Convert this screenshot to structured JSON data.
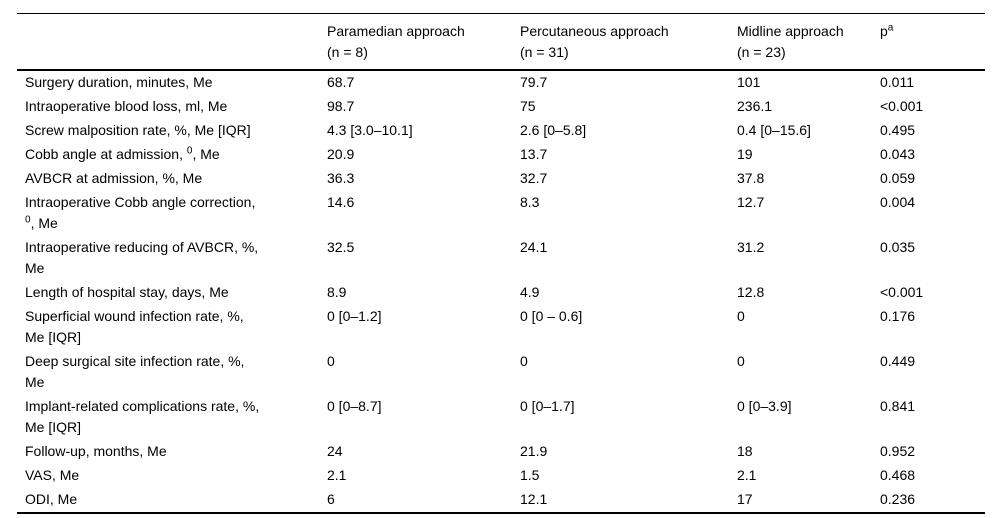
{
  "table": {
    "description": "Comparison of surgical approaches outcomes table",
    "headers": [
      "",
      "Paramedian approach\n(n = 8)",
      "Percutaneous approach\n(n = 31)",
      "Midline approach\n(n = 23)",
      "p^a^"
    ],
    "rows": [
      {
        "label": "Surgery duration, minutes, Me",
        "values": [
          "68.7",
          "79.7",
          "101",
          "0.011"
        ]
      },
      {
        "label": "Intraoperative blood loss, ml, Me",
        "values": [
          "98.7",
          "75",
          "236.1",
          "<0.001"
        ]
      },
      {
        "label": "Screw malposition rate, %, Me [IQR]",
        "values": [
          "4.3 [3.0–10.1]",
          "2.6 [0–5.8]",
          "0.4 [0–15.6]",
          "0.495"
        ]
      },
      {
        "label": "Cobb angle at admission, ^0^, Me",
        "values": [
          "20.9",
          "13.7",
          "19",
          "0.043"
        ]
      },
      {
        "label": "AVBCR at admission, %, Me",
        "values": [
          "36.3",
          "32.7",
          "37.8",
          "0.059"
        ]
      },
      {
        "label": "Intraoperative Cobb angle correction,\n^0^, Me",
        "values": [
          "14.6",
          "8.3",
          "12.7",
          "0.004"
        ]
      },
      {
        "label": "Intraoperative reducing of AVBCR, %,\nMe",
        "values": [
          "32.5",
          "24.1",
          "31.2",
          "0.035"
        ]
      },
      {
        "label": "Length of hospital stay, days, Me",
        "values": [
          "8.9",
          "4.9",
          "12.8",
          "<0.001"
        ]
      },
      {
        "label": "Superficial wound infection rate, %,\nMe [IQR]",
        "values": [
          "0 [0–1.2]",
          "0 [0 – 0.6]",
          "0",
          "0.176"
        ]
      },
      {
        "label": "Deep surgical site infection rate, %,\nMe",
        "values": [
          "0",
          "0",
          "0",
          "0.449"
        ]
      },
      {
        "label": "Implant-related complications rate, %,\nMe [IQR]",
        "values": [
          "0 [0–8.7]",
          "0 [0–1.7]",
          "0 [0–3.9]",
          "0.841"
        ]
      },
      {
        "label": "Follow-up, months, Me",
        "values": [
          "24",
          "21.9",
          "18",
          "0.952"
        ]
      },
      {
        "label": "VAS, Me",
        "values": [
          "2.1",
          "1.5",
          "2.1",
          "0.468"
        ]
      },
      {
        "label": "ODI, Me",
        "values": [
          "6",
          "12.1",
          "17",
          "0.236"
        ]
      }
    ],
    "colors": {
      "text": "#000000",
      "background": "#ffffff",
      "rule": "#000000"
    }
  }
}
